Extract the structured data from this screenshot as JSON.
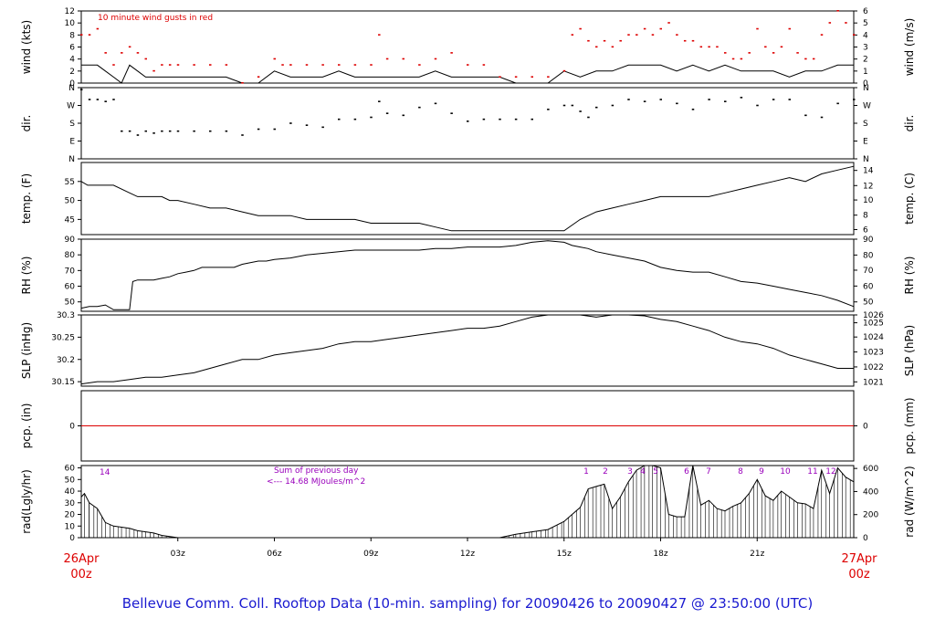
{
  "footer_title": "Bellevue Comm. Coll. Rooftop Data (10-min. sampling) for 20090426  to  20090427 @ 23:50:00  (UTC)",
  "colors": {
    "axis": "#000000",
    "gust": "#dd0000",
    "pcp_line": "#dd0000",
    "rad_annot": "#9900bb",
    "footer": "#1a1ad0"
  },
  "x_axis": {
    "range_hours": [
      0,
      24
    ],
    "ticks": [
      {
        "h": 3,
        "label": "03z"
      },
      {
        "h": 6,
        "label": "06z"
      },
      {
        "h": 9,
        "label": "09z"
      },
      {
        "h": 12,
        "label": "12z"
      },
      {
        "h": 15,
        "label": "15z"
      },
      {
        "h": 18,
        "label": "18z"
      },
      {
        "h": 21,
        "label": "21z"
      }
    ],
    "start_label": [
      "26Apr",
      "00z"
    ],
    "end_label": [
      "27Apr",
      "00z"
    ]
  },
  "chart_data": [
    {
      "type": "line",
      "name": "wind",
      "ylabel_left": "wind (kts)",
      "ylabel_right": "wind (m/s)",
      "annotation": "10  minute wind gusts in red",
      "ylim": [
        0,
        12
      ],
      "left_ticks": [
        0,
        2,
        4,
        6,
        8,
        10,
        12
      ],
      "right_ticks": [
        0,
        1,
        2,
        3,
        4,
        5,
        6
      ],
      "series": [
        {
          "role": "speed",
          "x": [
            0,
            0.5,
            0.75,
            1,
            1.25,
            1.5,
            1.75,
            2,
            2.5,
            3,
            3.5,
            4,
            4.5,
            5,
            5.5,
            6,
            6.5,
            7,
            7.5,
            8,
            8.5,
            9,
            9.5,
            10,
            10.5,
            11,
            11.5,
            12,
            12.5,
            13,
            13.5,
            14,
            14.5,
            15,
            15.5,
            16,
            16.5,
            17,
            17.5,
            18,
            18.5,
            19,
            19.5,
            20,
            20.5,
            21,
            21.5,
            22,
            22.5,
            23,
            23.5,
            24
          ],
          "y": [
            3,
            3,
            2,
            1,
            0,
            3,
            2,
            1,
            1,
            1,
            1,
            1,
            1,
            0,
            0,
            2,
            1,
            1,
            1,
            2,
            1,
            1,
            1,
            1,
            1,
            2,
            1,
            1,
            1,
            1,
            0,
            0,
            0,
            2,
            1,
            2,
            2,
            3,
            3,
            3,
            2,
            3,
            2,
            3,
            2,
            2,
            2,
            1,
            2,
            2,
            3,
            3
          ]
        },
        {
          "role": "gust",
          "x": [
            0,
            0.25,
            0.5,
            0.75,
            1,
            1.25,
            1.5,
            1.75,
            2,
            2.25,
            2.5,
            2.75,
            3,
            3.5,
            4,
            4.5,
            5,
            5.5,
            6,
            6.25,
            6.5,
            7,
            7.5,
            8,
            8.5,
            9,
            9.25,
            9.5,
            10,
            10.5,
            11,
            11.5,
            12,
            12.5,
            13,
            13.5,
            14,
            14.5,
            15,
            15.25,
            15.5,
            15.75,
            16,
            16.25,
            16.5,
            16.75,
            17,
            17.25,
            17.5,
            17.75,
            18,
            18.25,
            18.5,
            18.75,
            19,
            19.25,
            19.5,
            19.75,
            20,
            20.25,
            20.5,
            20.75,
            21,
            21.25,
            21.5,
            21.75,
            22,
            22.25,
            22.5,
            22.75,
            23,
            23.25,
            23.5,
            23.75,
            24
          ],
          "y": [
            8,
            8,
            9,
            5,
            3,
            5,
            6,
            5,
            4,
            2,
            3,
            3,
            3,
            3,
            3,
            3,
            0,
            1,
            4,
            3,
            3,
            3,
            3,
            3,
            3,
            3,
            8,
            4,
            4,
            3,
            4,
            5,
            3,
            3,
            1,
            1,
            1,
            1,
            2,
            8,
            9,
            7,
            6,
            7,
            6,
            7,
            8,
            8,
            9,
            8,
            9,
            10,
            8,
            7,
            7,
            6,
            6,
            6,
            5,
            4,
            4,
            5,
            9,
            6,
            5,
            6,
            9,
            5,
            4,
            4,
            8,
            10,
            12,
            10,
            8
          ]
        }
      ]
    },
    {
      "type": "scatter",
      "name": "dir",
      "ylabel_left": "dir.",
      "ylabel_right": "dir.",
      "categories": [
        "N",
        "E",
        "S",
        "W",
        "N"
      ],
      "ylim": [
        0,
        360
      ],
      "x": [
        0,
        0.25,
        0.5,
        0.75,
        1,
        1.25,
        1.5,
        1.75,
        2,
        2.25,
        2.5,
        2.75,
        3,
        3.5,
        4,
        4.5,
        5,
        5.5,
        6,
        6.5,
        7,
        7.5,
        8,
        8.5,
        9,
        9.25,
        9.5,
        10,
        10.5,
        11,
        11.5,
        12,
        12.5,
        13,
        13.5,
        14,
        14.5,
        15,
        15.25,
        15.5,
        15.75,
        16,
        16.5,
        17,
        17.5,
        18,
        18.5,
        19,
        19.5,
        20,
        20.5,
        21,
        21.5,
        22,
        22.5,
        23,
        23.5,
        24
      ],
      "y": [
        350,
        300,
        300,
        290,
        300,
        140,
        140,
        120,
        140,
        130,
        140,
        140,
        140,
        140,
        140,
        140,
        120,
        150,
        150,
        180,
        170,
        160,
        200,
        200,
        210,
        290,
        230,
        220,
        260,
        280,
        230,
        190,
        200,
        200,
        200,
        200,
        250,
        270,
        270,
        240,
        210,
        260,
        270,
        300,
        290,
        300,
        280,
        250,
        300,
        290,
        310,
        270,
        300,
        300,
        220,
        210,
        280,
        300
      ]
    },
    {
      "type": "line",
      "name": "temp",
      "ylabel_left": "temp. (F)",
      "ylabel_right": "temp. (C)",
      "ylim": [
        41,
        60
      ],
      "left_ticks": [
        45,
        50,
        55
      ],
      "right_ticks": [
        6,
        8,
        10,
        12,
        14
      ],
      "x": [
        0,
        0.2,
        1,
        1.5,
        1.75,
        2,
        2.5,
        2.75,
        3,
        3.5,
        4,
        4.5,
        5,
        5.5,
        6,
        6.5,
        7,
        7.5,
        8,
        8.5,
        9,
        9.5,
        10,
        10.5,
        11,
        11.5,
        12,
        12.5,
        13,
        13.5,
        14,
        14.5,
        15,
        15.5,
        16,
        16.5,
        17,
        17.5,
        18,
        18.5,
        19,
        19.5,
        20,
        20.5,
        21,
        21.5,
        22,
        22.5,
        23,
        23.5,
        24
      ],
      "y": [
        55,
        54,
        54,
        52,
        51,
        51,
        51,
        50,
        50,
        49,
        48,
        48,
        47,
        46,
        46,
        46,
        45,
        45,
        45,
        45,
        44,
        44,
        44,
        44,
        43,
        42,
        42,
        42,
        42,
        42,
        42,
        42,
        42,
        45,
        47,
        48,
        49,
        50,
        51,
        51,
        51,
        51,
        52,
        53,
        54,
        55,
        56,
        55,
        57,
        58,
        59
      ]
    },
    {
      "type": "line",
      "name": "rh",
      "ylabel_left": "RH (%)",
      "ylabel_right": "RH (%)",
      "ylim": [
        44,
        90
      ],
      "left_ticks": [
        50,
        60,
        70,
        80,
        90
      ],
      "right_ticks": [
        50,
        60,
        70,
        80,
        90
      ],
      "x": [
        0,
        0.25,
        0.5,
        0.75,
        1,
        1.25,
        1.5,
        1.6,
        1.75,
        2,
        2.25,
        2.5,
        2.75,
        3,
        3.25,
        3.5,
        3.75,
        4,
        4.25,
        4.5,
        4.75,
        5,
        5.25,
        5.5,
        5.75,
        6,
        6.5,
        7,
        7.5,
        8,
        8.5,
        9,
        9.5,
        10,
        10.5,
        11,
        11.5,
        12,
        12.5,
        13,
        13.5,
        14,
        14.5,
        15,
        15.25,
        15.5,
        15.75,
        16,
        16.5,
        17,
        17.5,
        18,
        18.5,
        19,
        19.5,
        20,
        20.5,
        21,
        21.5,
        22,
        22.5,
        23,
        23.5,
        24
      ],
      "y": [
        46,
        47,
        47,
        48,
        45,
        45,
        45,
        63,
        64,
        64,
        64,
        65,
        66,
        68,
        69,
        70,
        72,
        72,
        72,
        72,
        72,
        74,
        75,
        76,
        76,
        77,
        78,
        80,
        81,
        82,
        83,
        83,
        83,
        83,
        83,
        84,
        84,
        85,
        85,
        85,
        86,
        88,
        89,
        88,
        86,
        85,
        84,
        82,
        80,
        78,
        76,
        72,
        70,
        69,
        69,
        66,
        63,
        62,
        60,
        58,
        56,
        54,
        51,
        47
      ]
    },
    {
      "type": "line",
      "name": "slp",
      "ylabel_left": "SLP (inHg)",
      "ylabel_right": "SLP (hPa)",
      "ylim": [
        30.14,
        30.3
      ],
      "left_ticks": [
        30.15,
        30.2,
        30.25,
        30.3
      ],
      "right_ticks": [
        1021,
        1022,
        1023,
        1024,
        1025,
        1026
      ],
      "x": [
        0,
        0.5,
        1,
        1.5,
        2,
        2.5,
        3,
        3.5,
        4,
        4.5,
        5,
        5.5,
        6,
        6.5,
        7,
        7.5,
        8,
        8.5,
        9,
        9.5,
        10,
        10.5,
        11,
        11.5,
        12,
        12.5,
        13,
        13.5,
        14,
        14.5,
        15,
        15.5,
        16,
        16.5,
        17,
        17.5,
        18,
        18.5,
        19,
        19.5,
        20,
        20.5,
        21,
        21.5,
        22,
        22.5,
        23,
        23.5,
        24
      ],
      "y": [
        30.145,
        30.15,
        30.15,
        30.155,
        30.16,
        30.16,
        30.165,
        30.17,
        30.18,
        30.19,
        30.2,
        30.2,
        30.21,
        30.215,
        30.22,
        30.225,
        30.235,
        30.24,
        30.24,
        30.245,
        30.25,
        30.255,
        30.26,
        30.265,
        30.27,
        30.27,
        30.275,
        30.285,
        30.295,
        30.3,
        30.3,
        30.3,
        30.295,
        30.3,
        30.3,
        30.298,
        30.29,
        30.285,
        30.275,
        30.265,
        30.25,
        30.24,
        30.235,
        30.225,
        30.21,
        30.2,
        30.19,
        30.18,
        30.18
      ]
    },
    {
      "type": "line",
      "name": "pcp",
      "ylabel_left": "pcp. (in)",
      "ylabel_right": "pcp. (mm)",
      "ylim": [
        -1,
        1
      ],
      "left_ticks": [
        0
      ],
      "right_ticks": [
        0
      ],
      "x": [
        0,
        24
      ],
      "y": [
        0,
        0
      ]
    },
    {
      "type": "area",
      "name": "rad",
      "ylabel_left": "rad(Lgly/hr)",
      "ylabel_right": "rad (W/m^2)",
      "ylim": [
        0,
        62
      ],
      "left_ticks": [
        0,
        10,
        20,
        30,
        40,
        50,
        60
      ],
      "right_ticks": [
        0,
        200,
        400,
        600
      ],
      "annotations": {
        "left_number": "14",
        "sum_line1": "Sum of previous day",
        "sum_line2": "<--- 14.68 MJoules/m^2",
        "hour_labels": [
          "1",
          "2",
          "3",
          "4",
          "5",
          "6",
          "7",
          "8",
          "9",
          "10",
          "11",
          "12"
        ]
      },
      "x": [
        0,
        0.1,
        0.25,
        0.5,
        0.75,
        1,
        1.25,
        1.5,
        1.75,
        2,
        2.25,
        2.5,
        2.75,
        3,
        3.1,
        13,
        13.5,
        14,
        14.5,
        15,
        15.25,
        15.5,
        15.75,
        16,
        16.25,
        16.5,
        16.75,
        17,
        17.25,
        17.5,
        17.75,
        18,
        18.25,
        18.5,
        18.75,
        19,
        19.25,
        19.5,
        19.75,
        20,
        20.25,
        20.5,
        20.75,
        21,
        21.25,
        21.5,
        21.75,
        22,
        22.25,
        22.5,
        22.75,
        23,
        23.25,
        23.5,
        23.75,
        24
      ],
      "y": [
        35,
        38,
        30,
        25,
        13,
        10,
        9,
        8,
        6,
        5,
        4,
        2,
        1,
        0,
        0,
        0,
        3,
        5,
        7,
        14,
        20,
        26,
        42,
        44,
        46,
        25,
        35,
        48,
        58,
        62,
        62,
        60,
        20,
        18,
        18,
        62,
        28,
        32,
        25,
        23,
        27,
        30,
        38,
        50,
        36,
        32,
        40,
        35,
        30,
        29,
        25,
        58,
        38,
        60,
        52,
        48
      ]
    }
  ]
}
